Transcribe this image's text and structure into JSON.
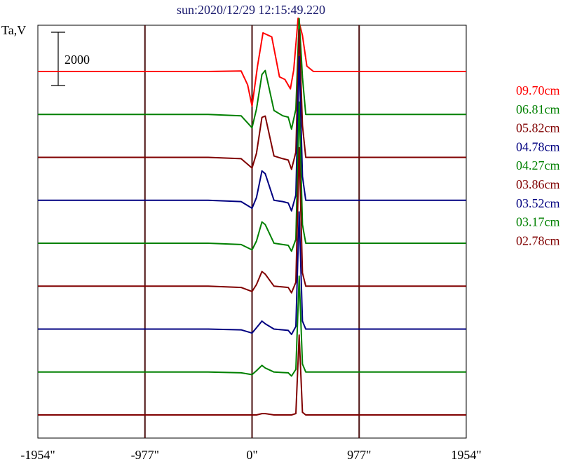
{
  "chart_data": {
    "type": "line",
    "title": "sun:2020/12/29 12:15:49.220",
    "ylabel": "Ta,V",
    "scale_bar_label": "2000",
    "x_tick_labels": [
      "-1954\"",
      "-977\"",
      "0\"",
      "977\"",
      "1954\""
    ],
    "x_ticks": [
      -1954,
      -977,
      0,
      977,
      1954
    ],
    "xlim": [
      -1954,
      1954
    ],
    "y_unit_per_scale_bar": 2000,
    "series": [
      {
        "name": "09.70cm",
        "color": "#ff0000",
        "baseline": 9,
        "x": [
          -1954,
          -1500,
          -1000,
          -400,
          -100,
          -40,
          0,
          50,
          100,
          180,
          250,
          300,
          350,
          380,
          420,
          460,
          500,
          560,
          700,
          1000,
          1500,
          1954
        ],
        "y": [
          0,
          0,
          0,
          0,
          20,
          -500,
          -1300,
          200,
          1450,
          1300,
          -200,
          -300,
          -650,
          50,
          2000,
          1350,
          200,
          0,
          0,
          0,
          0,
          0
        ]
      },
      {
        "name": "06.81cm",
        "color": "#008000",
        "baseline": 8,
        "x": [
          -1954,
          -1500,
          -1000,
          -400,
          -100,
          0,
          40,
          90,
          120,
          200,
          280,
          330,
          360,
          400,
          430,
          460,
          490,
          560,
          700,
          1000,
          1500,
          1954
        ],
        "y": [
          0,
          0,
          0,
          0,
          -50,
          -500,
          200,
          1500,
          1650,
          150,
          -50,
          -100,
          -550,
          200,
          3600,
          1400,
          0,
          0,
          0,
          0,
          0,
          0
        ]
      },
      {
        "name": "05.82cm",
        "color": "#800000",
        "baseline": 7,
        "x": [
          -1954,
          -1500,
          -1000,
          -400,
          -100,
          0,
          40,
          90,
          120,
          200,
          280,
          330,
          360,
          400,
          430,
          460,
          490,
          560,
          700,
          1000,
          1500,
          1954
        ],
        "y": [
          0,
          0,
          0,
          0,
          -50,
          -400,
          150,
          1500,
          1550,
          50,
          -50,
          -100,
          -450,
          200,
          4800,
          1200,
          0,
          0,
          0,
          0,
          0,
          0
        ]
      },
      {
        "name": "04.78cm",
        "color": "#000080",
        "baseline": 6,
        "x": [
          -1954,
          -1500,
          -1000,
          -400,
          -100,
          0,
          40,
          90,
          120,
          200,
          280,
          330,
          360,
          400,
          430,
          460,
          490,
          560,
          700,
          1000,
          1500,
          1954
        ],
        "y": [
          0,
          0,
          0,
          0,
          -50,
          -300,
          100,
          1100,
          1000,
          0,
          -50,
          -100,
          -400,
          200,
          5400,
          900,
          0,
          0,
          0,
          0,
          0,
          0
        ]
      },
      {
        "name": "04.27cm",
        "color": "#008000",
        "baseline": 5,
        "x": [
          -1954,
          -1500,
          -1000,
          -400,
          -100,
          0,
          40,
          90,
          120,
          200,
          280,
          330,
          360,
          400,
          430,
          460,
          490,
          560,
          700,
          1000,
          1500,
          1954
        ],
        "y": [
          0,
          0,
          0,
          0,
          -50,
          -250,
          80,
          800,
          700,
          0,
          -50,
          -80,
          -300,
          150,
          5300,
          700,
          0,
          0,
          0,
          0,
          0,
          0
        ]
      },
      {
        "name": "03.86cm",
        "color": "#800000",
        "baseline": 4,
        "x": [
          -1954,
          -1500,
          -1000,
          -400,
          -100,
          0,
          40,
          90,
          120,
          200,
          280,
          330,
          360,
          400,
          430,
          460,
          490,
          560,
          700,
          1000,
          1500,
          1954
        ],
        "y": [
          0,
          0,
          0,
          0,
          -50,
          -200,
          60,
          550,
          450,
          0,
          -30,
          -50,
          -250,
          150,
          5200,
          500,
          0,
          0,
          0,
          0,
          0,
          0
        ]
      },
      {
        "name": "03.52cm",
        "color": "#000080",
        "baseline": 3,
        "x": [
          -1954,
          -1500,
          -1000,
          -400,
          -100,
          0,
          40,
          90,
          120,
          200,
          280,
          330,
          360,
          400,
          430,
          460,
          490,
          560,
          700,
          1000,
          1500,
          1954
        ],
        "y": [
          0,
          0,
          0,
          0,
          -30,
          -150,
          50,
          300,
          200,
          0,
          -30,
          -50,
          -200,
          100,
          4400,
          300,
          0,
          0,
          0,
          0,
          0,
          0
        ]
      },
      {
        "name": "03.17cm",
        "color": "#008000",
        "baseline": 2,
        "x": [
          -1954,
          -1500,
          -1000,
          -400,
          -100,
          0,
          40,
          90,
          120,
          200,
          280,
          330,
          360,
          400,
          430,
          460,
          490,
          560,
          700,
          1000,
          1500,
          1954
        ],
        "y": [
          0,
          0,
          0,
          0,
          -30,
          -100,
          50,
          250,
          150,
          0,
          -20,
          -30,
          -150,
          100,
          3600,
          300,
          0,
          0,
          0,
          0,
          0,
          0
        ]
      },
      {
        "name": "02.78cm",
        "color": "#800000",
        "baseline": 1,
        "x": [
          -1954,
          -1500,
          -1000,
          -400,
          -100,
          0,
          40,
          90,
          120,
          200,
          280,
          330,
          360,
          400,
          430,
          460,
          490,
          560,
          700,
          1000,
          1500,
          1954
        ],
        "y": [
          0,
          0,
          0,
          0,
          0,
          0,
          0,
          50,
          50,
          0,
          0,
          0,
          0,
          50,
          3000,
          100,
          0,
          0,
          0,
          0,
          0,
          0
        ]
      }
    ],
    "grid": "vertical lines at ticks",
    "legend_placement": "right"
  }
}
